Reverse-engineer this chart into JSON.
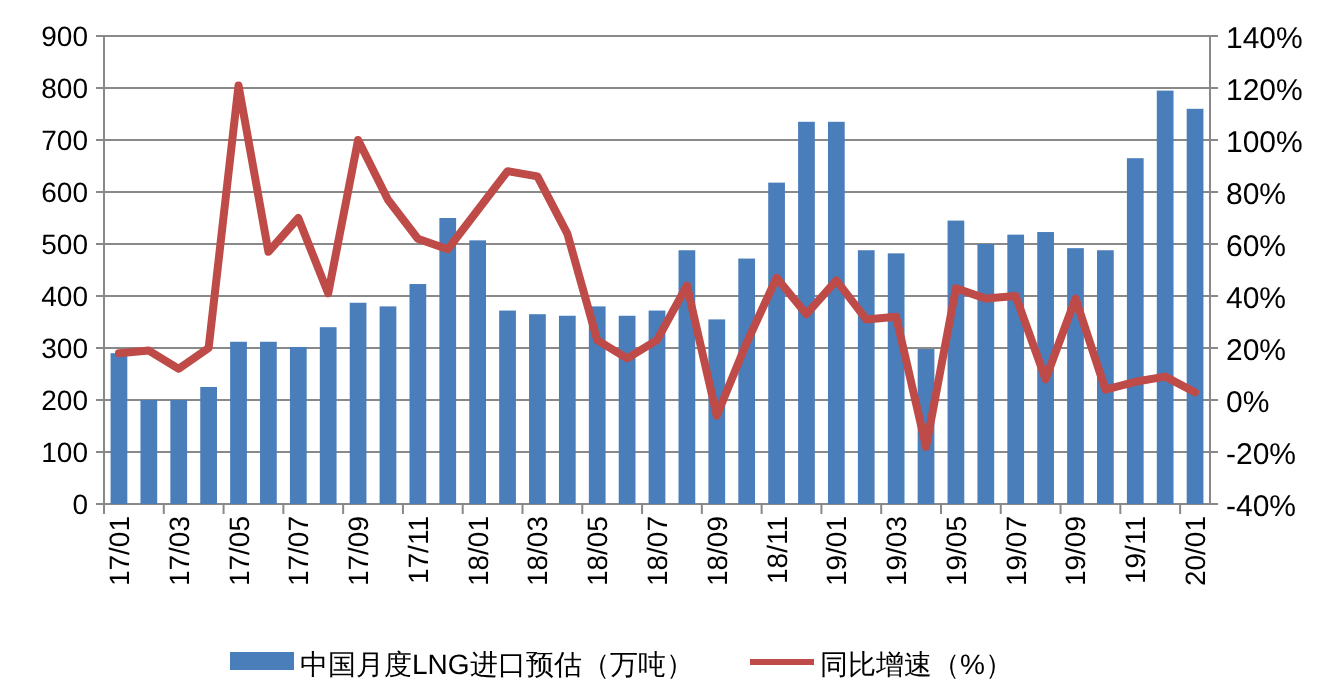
{
  "chart_data": {
    "type": "bar",
    "categories": [
      "17/01",
      null,
      "17/03",
      null,
      "17/05",
      null,
      "17/07",
      null,
      "17/09",
      null,
      "17/11",
      null,
      "18/01",
      null,
      "18/03",
      null,
      "18/05",
      null,
      "18/07",
      null,
      "18/09",
      null,
      "18/11",
      null,
      "19/01",
      null,
      "19/03",
      null,
      "19/05",
      null,
      "19/07",
      null,
      "19/09",
      null,
      "19/11",
      null,
      "20/01"
    ],
    "series": [
      {
        "name": "中国月度LNG进口预估（万吨）",
        "color": "#4a7ebb",
        "values": [
          290,
          200,
          200,
          225,
          312,
          312,
          302,
          340,
          387,
          380,
          423,
          550,
          507,
          372,
          365,
          362,
          380,
          362,
          372,
          488,
          355,
          472,
          618,
          735,
          735,
          488,
          482,
          298,
          545,
          500,
          518,
          523,
          492,
          488,
          665,
          795,
          760
        ]
      },
      {
        "name": "同比增速（%）",
        "type": "line",
        "axis": "y2",
        "color": "#be4b48",
        "values": [
          18,
          19,
          12,
          20,
          121,
          57,
          70,
          41,
          100,
          77,
          62,
          58,
          73,
          88,
          86,
          64,
          23,
          16,
          23,
          44,
          -6,
          22,
          47,
          33,
          46,
          31,
          32,
          -18,
          43,
          39,
          40,
          8,
          39,
          4,
          7,
          9,
          3
        ]
      }
    ],
    "ylim": [
      0,
      900
    ],
    "yticks": [
      0,
      100,
      200,
      300,
      400,
      500,
      600,
      700,
      800,
      900
    ],
    "y2lim": [
      -40,
      140
    ],
    "y2ticks": [
      {
        "value": -40,
        "label": "-40%"
      },
      {
        "value": -20,
        "label": "-20%"
      },
      {
        "value": 0,
        "label": "0%"
      },
      {
        "value": 20,
        "label": "20%"
      },
      {
        "value": 40,
        "label": "40%"
      },
      {
        "value": 60,
        "label": "60%"
      },
      {
        "value": 80,
        "label": "80%"
      },
      {
        "value": 100,
        "label": "100%"
      },
      {
        "value": 120,
        "label": "120%"
      },
      {
        "value": 140,
        "label": "140%"
      }
    ],
    "grid": "y",
    "legend": "bottom"
  }
}
